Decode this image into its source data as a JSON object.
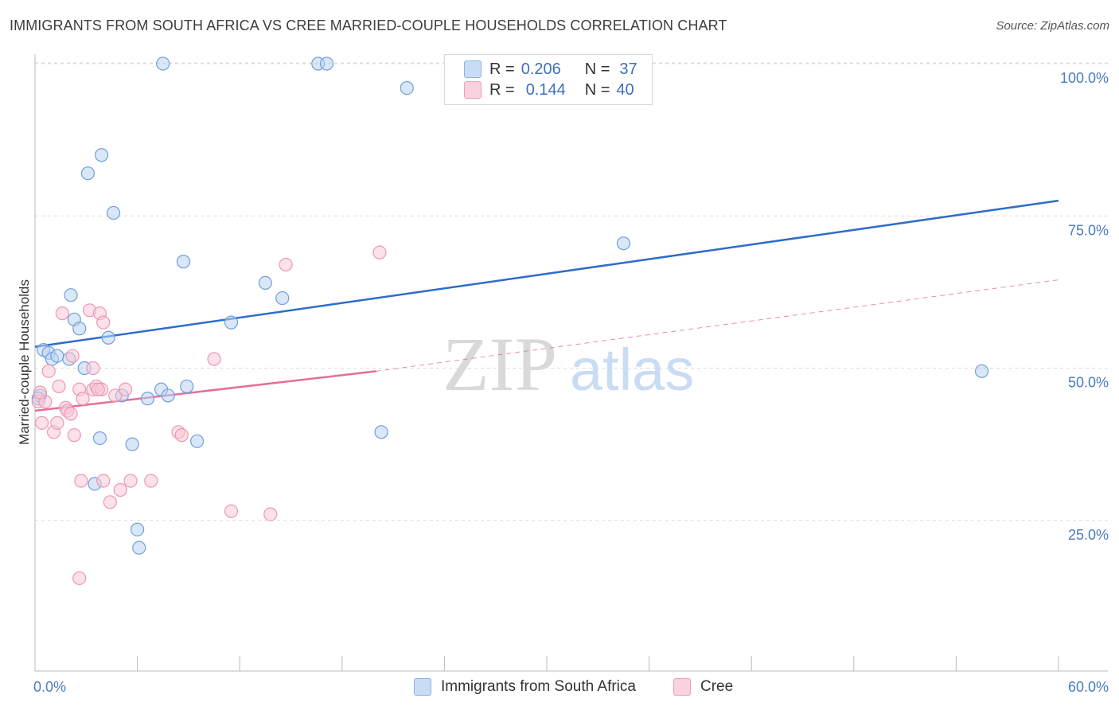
{
  "title": "IMMIGRANTS FROM SOUTH AFRICA VS CREE MARRIED-COUPLE HOUSEHOLDS CORRELATION CHART",
  "source": "Source: ZipAtlas.com",
  "watermark": {
    "zip": "ZIP",
    "atlas": "atlas"
  },
  "legend_top": {
    "rows": [
      {
        "r_label": "R =",
        "r_value": "0.206",
        "n_label": "N =",
        "n_value": "37",
        "color": "#a9c6ec"
      },
      {
        "r_label": "R =",
        "r_value": "0.144",
        "n_label": "N =",
        "n_value": "40",
        "color": "#f5b8cb"
      }
    ]
  },
  "legend_bottom": [
    {
      "label": "Immigrants from South Africa",
      "color": "#a9c6ec"
    },
    {
      "label": "Cree",
      "color": "#f5b8cb"
    }
  ],
  "chart_data": {
    "type": "scatter",
    "ylabel": "Married-couple Households",
    "xlim": [
      0,
      60
    ],
    "ylim": [
      0,
      105
    ],
    "x_tick_labels": [
      "0.0%",
      "60.0%"
    ],
    "y_tick_labels": [
      "100.0%",
      "75.0%",
      "50.0%",
      "25.0%"
    ],
    "y_ticks": [
      100,
      75,
      50,
      25
    ],
    "grid": "horizontal dashed",
    "series": [
      {
        "name": "Immigrants from South Africa",
        "color": "#6f9fdc",
        "fill": "#bcd3f1",
        "trend": {
          "x0": 0,
          "y0": 53.5,
          "x1": 60,
          "y1": 77.5,
          "color": "#2f6dc8"
        },
        "points": [
          [
            0.3,
            45.5
          ],
          [
            0.5,
            53
          ],
          [
            0.8,
            52.5
          ],
          [
            1.0,
            51.5
          ],
          [
            1.3,
            52
          ],
          [
            2.0,
            51.5
          ],
          [
            2.1,
            62
          ],
          [
            2.3,
            58
          ],
          [
            2.6,
            56.5
          ],
          [
            2.9,
            50
          ],
          [
            3.1,
            82
          ],
          [
            3.5,
            31
          ],
          [
            3.8,
            38.5
          ],
          [
            3.9,
            85
          ],
          [
            4.3,
            55
          ],
          [
            4.6,
            75.5
          ],
          [
            5.1,
            45.5
          ],
          [
            5.7,
            37.5
          ],
          [
            6.0,
            23.5
          ],
          [
            6.1,
            20.5
          ],
          [
            6.6,
            45
          ],
          [
            7.4,
            46.5
          ],
          [
            7.5,
            100
          ],
          [
            7.8,
            45.5
          ],
          [
            8.7,
            67.5
          ],
          [
            8.9,
            47
          ],
          [
            9.5,
            38
          ],
          [
            11.5,
            57.5
          ],
          [
            13.5,
            64
          ],
          [
            14.5,
            61.5
          ],
          [
            16.6,
            100
          ],
          [
            17.1,
            100
          ],
          [
            20.3,
            39.5
          ],
          [
            21.8,
            96
          ],
          [
            34.5,
            70.5
          ],
          [
            55.5,
            49.5
          ],
          [
            0.2,
            45
          ]
        ]
      },
      {
        "name": "Cree",
        "color": "#ee97b3",
        "fill": "#f8c9d7",
        "trend": {
          "x0": 0,
          "y0": 43,
          "x1": 20,
          "y1": 49.5,
          "x2": 60,
          "y2": 64.5,
          "color": "#e56e98"
        },
        "points": [
          [
            0.2,
            44.5
          ],
          [
            0.4,
            41
          ],
          [
            0.6,
            44.5
          ],
          [
            0.8,
            49.5
          ],
          [
            1.1,
            39.5
          ],
          [
            1.3,
            41
          ],
          [
            1.4,
            47
          ],
          [
            1.6,
            59
          ],
          [
            1.8,
            43.5
          ],
          [
            1.9,
            43
          ],
          [
            2.1,
            42.5
          ],
          [
            2.2,
            52
          ],
          [
            2.3,
            39
          ],
          [
            2.6,
            46.5
          ],
          [
            2.7,
            31.5
          ],
          [
            2.8,
            45
          ],
          [
            3.2,
            59.5
          ],
          [
            3.4,
            46.5
          ],
          [
            3.6,
            47
          ],
          [
            3.8,
            59
          ],
          [
            3.9,
            46.5
          ],
          [
            4.0,
            31.5
          ],
          [
            4.4,
            28
          ],
          [
            4.7,
            45.5
          ],
          [
            5.0,
            30
          ],
          [
            5.3,
            46.5
          ],
          [
            5.6,
            31.5
          ],
          [
            8.4,
            39.5
          ],
          [
            8.6,
            39
          ],
          [
            10.5,
            51.5
          ],
          [
            11.5,
            26.5
          ],
          [
            13.8,
            26
          ],
          [
            14.7,
            67
          ],
          [
            20.2,
            69
          ],
          [
            3.4,
            50
          ],
          [
            4.0,
            57.5
          ],
          [
            2.6,
            15.5
          ],
          [
            3.7,
            46.5
          ],
          [
            6.8,
            31.5
          ],
          [
            0.3,
            46
          ]
        ]
      }
    ]
  }
}
